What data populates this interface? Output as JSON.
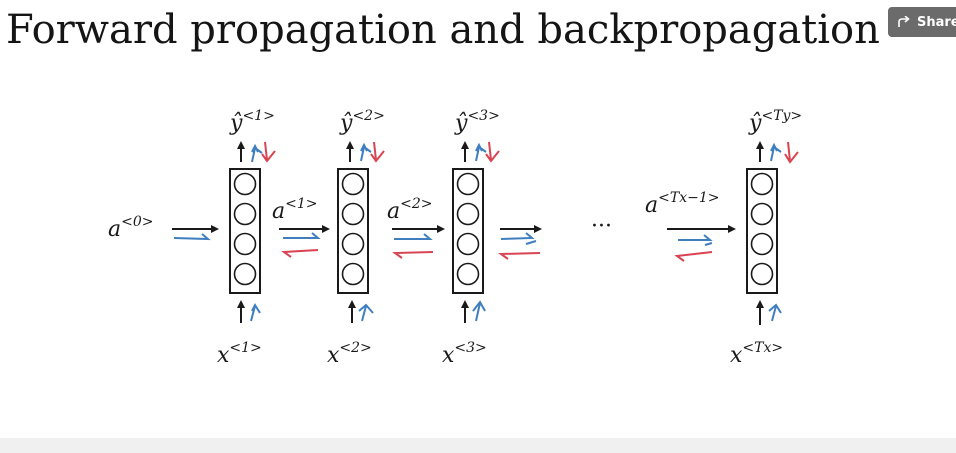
{
  "slide": {
    "title": "Forward propagation and backpropagation"
  },
  "share_button": {
    "label": "Share",
    "icon": "share-arrow-icon"
  },
  "diagram": {
    "cells": [
      {
        "output_base": "ŷ",
        "output_sup": "<1>",
        "input_base": "x",
        "input_sup": "<1>"
      },
      {
        "output_base": "ŷ",
        "output_sup": "<2>",
        "input_base": "x",
        "input_sup": "<2>"
      },
      {
        "output_base": "ŷ",
        "output_sup": "<3>",
        "input_base": "x",
        "input_sup": "<3>"
      },
      {
        "output_base": "ŷ",
        "output_sup": "<Ty>",
        "input_base": "x",
        "input_sup": "<Tx>"
      }
    ],
    "activations": [
      {
        "base": "a",
        "sup": "<0>"
      },
      {
        "base": "a",
        "sup": "<1>"
      },
      {
        "base": "a",
        "sup": "<2>"
      },
      {
        "base": "a",
        "sup": "<Tx−1>"
      }
    ],
    "ellipsis": "···",
    "colors": {
      "ink": "#1a1a1a",
      "forward": "#3f7fc0",
      "backward": "#d94452"
    }
  }
}
